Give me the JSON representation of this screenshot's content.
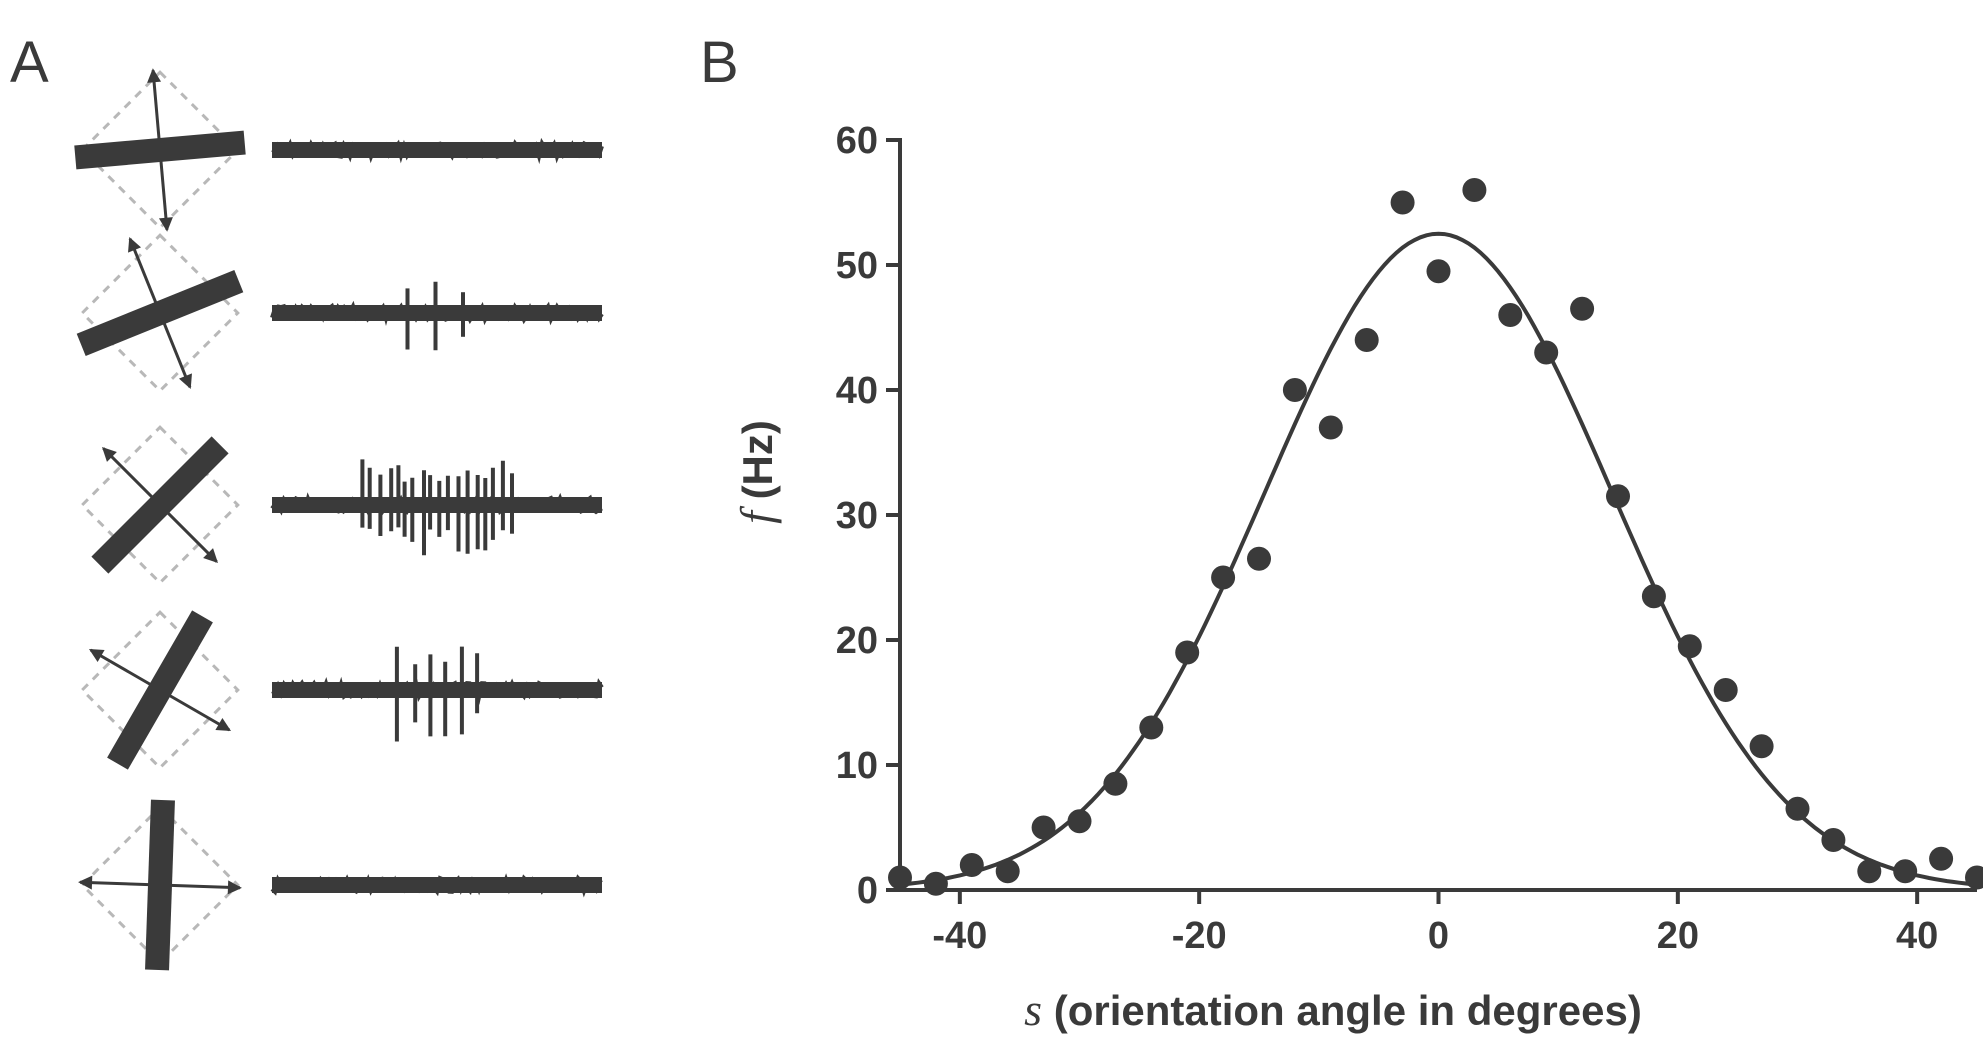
{
  "panels": {
    "a_label": "A",
    "b_label": "B"
  },
  "colors": {
    "ink": "#3a3a3a",
    "rf_outline": "#b8b8b8",
    "background": "#ffffff"
  },
  "panel_a": {
    "description_rows": [
      {
        "bar_orientation_deg": -5,
        "spike_count": 0
      },
      {
        "bar_orientation_deg": -22,
        "spike_count": 3
      },
      {
        "bar_orientation_deg": -45,
        "spike_count": 18
      },
      {
        "bar_orientation_deg": -60,
        "spike_count": 6
      },
      {
        "bar_orientation_deg": -88,
        "spike_count": 0
      }
    ]
  },
  "chart_data": {
    "type": "scatter",
    "title": "",
    "xlabel_symbol": "s",
    "xlabel_text": " (orientation angle in degrees)",
    "ylabel_symbol": "f",
    "ylabel_text": " (Hz)",
    "xlim": [
      -45,
      45
    ],
    "ylim": [
      0,
      60
    ],
    "xticks": [
      -40,
      -20,
      0,
      20,
      40
    ],
    "xtick_labels": [
      "-40",
      "-20",
      "0",
      "20",
      "40"
    ],
    "yticks": [
      0,
      10,
      20,
      30,
      40,
      50,
      60
    ],
    "ytick_labels": [
      "0",
      "10",
      "20",
      "30",
      "40",
      "50",
      "60"
    ],
    "grid": false,
    "series": [
      {
        "kind": "points",
        "x": [
          -45,
          -42,
          -39,
          -36,
          -33,
          -30,
          -27,
          -24,
          -21,
          -18,
          -15,
          -12,
          -9,
          -6,
          -3,
          0,
          3,
          6,
          9,
          12,
          15,
          18,
          21,
          24,
          27,
          30,
          33,
          36,
          39,
          42,
          45
        ],
        "y": [
          1,
          0.5,
          2,
          1.5,
          5,
          5.5,
          8.5,
          13,
          19,
          25,
          26.5,
          40,
          37,
          44,
          55,
          49.5,
          56,
          46,
          43,
          46.5,
          31.5,
          23.5,
          19.5,
          16,
          11.5,
          6.5,
          4,
          1.5,
          1.5,
          2.5,
          1
        ]
      },
      {
        "kind": "fit",
        "model": "gaussian",
        "peak": 52.5,
        "center": 0,
        "width_sd": 14.5
      }
    ]
  }
}
